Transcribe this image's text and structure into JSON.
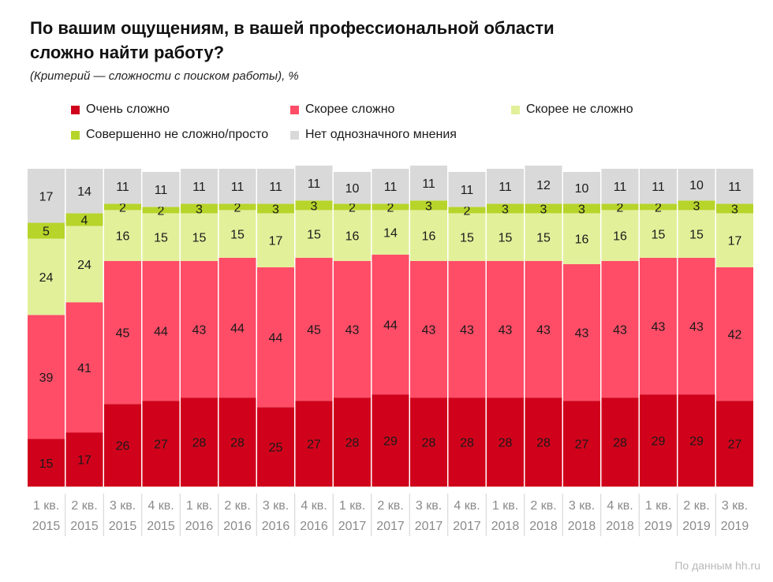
{
  "header": {
    "title_line1": "По вашим ощущениям, в вашей профессиональной области",
    "title_line2": "сложно найти работу?",
    "subtitle": "(Критерий — сложности с поиском работы), %"
  },
  "source": "По данным hh.ru",
  "chart_data": {
    "type": "bar",
    "stacked": true,
    "title": "По вашим ощущениям, в вашей профессиональной области сложно найти работу?",
    "subtitle": "(Критерий — сложности с поиском работы), %",
    "xlabel": "",
    "ylabel": "%",
    "ylim": [
      0,
      100
    ],
    "grid": false,
    "legend_position": "top",
    "categories": [
      {
        "line1": "1 кв.",
        "line2": "2015"
      },
      {
        "line1": "2 кв.",
        "line2": "2015"
      },
      {
        "line1": "3 кв.",
        "line2": "2015"
      },
      {
        "line1": "4 кв.",
        "line2": "2015"
      },
      {
        "line1": "1 кв.",
        "line2": "2016"
      },
      {
        "line1": "2 кв.",
        "line2": "2016"
      },
      {
        "line1": "3 кв.",
        "line2": "2016"
      },
      {
        "line1": "4 кв.",
        "line2": "2016"
      },
      {
        "line1": "1 кв.",
        "line2": "2017"
      },
      {
        "line1": "2 кв.",
        "line2": "2017"
      },
      {
        "line1": "3 кв.",
        "line2": "2017"
      },
      {
        "line1": "4 кв.",
        "line2": "2017"
      },
      {
        "line1": "1 кв.",
        "line2": "2018"
      },
      {
        "line1": "2 кв.",
        "line2": "2018"
      },
      {
        "line1": "3 кв.",
        "line2": "2018"
      },
      {
        "line1": "4 кв.",
        "line2": "2018"
      },
      {
        "line1": "1 кв.",
        "line2": "2019"
      },
      {
        "line1": "2 кв.",
        "line2": "2019"
      },
      {
        "line1": "3 кв.",
        "line2": "2019"
      }
    ],
    "series": [
      {
        "name": "Очень сложно",
        "color": "#d0021b",
        "values": [
          15,
          17,
          26,
          27,
          28,
          28,
          25,
          27,
          28,
          29,
          28,
          28,
          28,
          28,
          27,
          28,
          29,
          29,
          27
        ]
      },
      {
        "name": "Скорее сложно",
        "color": "#ff4d67",
        "values": [
          39,
          41,
          45,
          44,
          43,
          44,
          44,
          45,
          43,
          44,
          43,
          43,
          43,
          43,
          43,
          43,
          43,
          43,
          42
        ]
      },
      {
        "name": "Скорее не сложно",
        "color": "#e3f09a",
        "values": [
          24,
          24,
          16,
          15,
          15,
          15,
          17,
          15,
          16,
          14,
          16,
          15,
          15,
          15,
          16,
          16,
          15,
          15,
          17
        ]
      },
      {
        "name": "Совершенно не сложно/просто",
        "color": "#b7d42a",
        "values": [
          5,
          4,
          2,
          2,
          3,
          2,
          3,
          3,
          2,
          2,
          3,
          2,
          3,
          3,
          3,
          2,
          2,
          3,
          3
        ]
      },
      {
        "name": "Нет однозначного мнения",
        "color": "#d9d9d9",
        "values": [
          17,
          14,
          11,
          11,
          11,
          11,
          11,
          11,
          10,
          11,
          11,
          11,
          11,
          12,
          10,
          11,
          11,
          10,
          11
        ]
      }
    ]
  }
}
